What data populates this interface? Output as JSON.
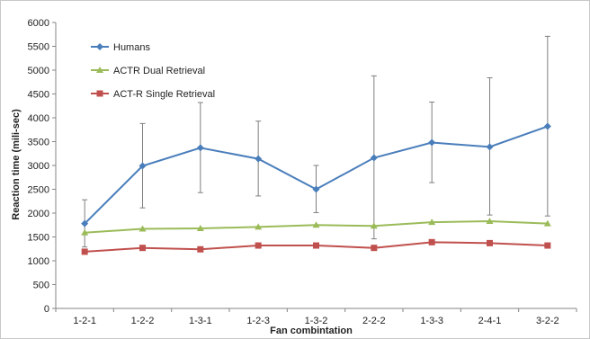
{
  "chart_data": {
    "type": "line",
    "xlabel": "Fan combintation",
    "ylabel": "Reaction time (mili-sec)",
    "categories": [
      "1-2-1",
      "1-2-2",
      "1-3-1",
      "1-2-3",
      "1-3-2",
      "2-2-2",
      "1-3-3",
      "2-4-1",
      "3-2-2"
    ],
    "ylim": [
      0,
      6000
    ],
    "yticks": [
      0,
      500,
      1000,
      1500,
      2000,
      2500,
      3000,
      3500,
      4000,
      4500,
      5000,
      5500,
      6000
    ],
    "grid": false,
    "legend_position": "top-left",
    "series": [
      {
        "name": "Humans",
        "color": "#4a7ebb",
        "marker": "diamond",
        "values": [
          1780,
          2990,
          3370,
          3140,
          2500,
          3160,
          3480,
          3390,
          3820
        ],
        "error_low": [
          1290,
          2110,
          2430,
          2360,
          2010,
          1460,
          2640,
          1960,
          1940
        ],
        "error_high": [
          2280,
          3880,
          4320,
          3930,
          3000,
          4880,
          4330,
          4840,
          5710
        ]
      },
      {
        "name": "ACTR Dual Retrieval",
        "color": "#9bbb59",
        "marker": "triangle",
        "values": [
          1590,
          1670,
          1680,
          1710,
          1750,
          1730,
          1810,
          1830,
          1780
        ]
      },
      {
        "name": "ACT-R Single Retrieval",
        "color": "#c0504d",
        "marker": "square",
        "values": [
          1190,
          1270,
          1240,
          1320,
          1320,
          1270,
          1390,
          1370,
          1320
        ]
      }
    ]
  }
}
